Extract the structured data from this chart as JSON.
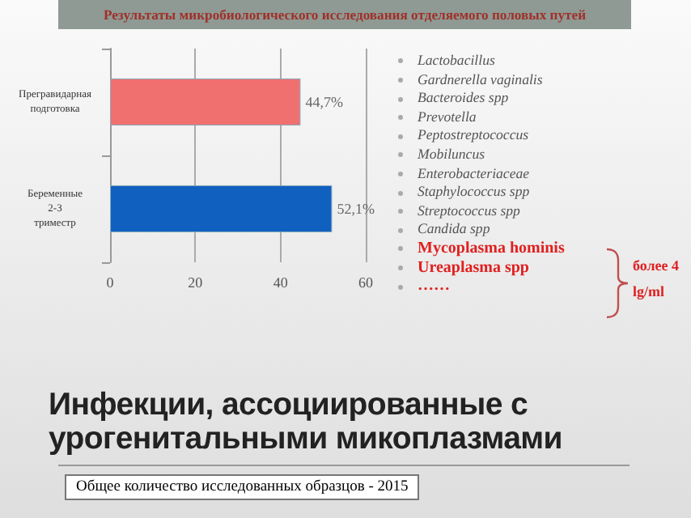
{
  "chart_data": {
    "type": "bar",
    "orientation": "horizontal",
    "title": "Инфекции, ассоциированные с урогенитальными микоплазмами",
    "subtitle": "Результаты микробиологического исследования отделяемого половых путей",
    "categories": [
      "Прегравидарная подготовка",
      "Беременные 2-3 триместр"
    ],
    "values": [
      44.7,
      52.1
    ],
    "colors": [
      "#f07070",
      "#1060c0"
    ],
    "value_labels": [
      "44,7%",
      "52,1%"
    ],
    "xlim": [
      0,
      60
    ],
    "xticks": [
      0,
      20,
      40,
      60
    ],
    "grid": "x",
    "annotations": [
      "Lactobacillus",
      "Gardnerella vaginalis",
      "Bacteroides spp",
      "Prevotella",
      "Peptostreptococcus",
      "Mobiluncus",
      "Enterobacteriaceae",
      "Staphylococcus spp",
      "Streptococcus spp",
      "Candida spp",
      "Mycoplasma hominis",
      "Ureaplasma spp",
      "……",
      "более 4 lg/ml",
      "Общее количество исследованных образцов - 2015"
    ]
  }
}
